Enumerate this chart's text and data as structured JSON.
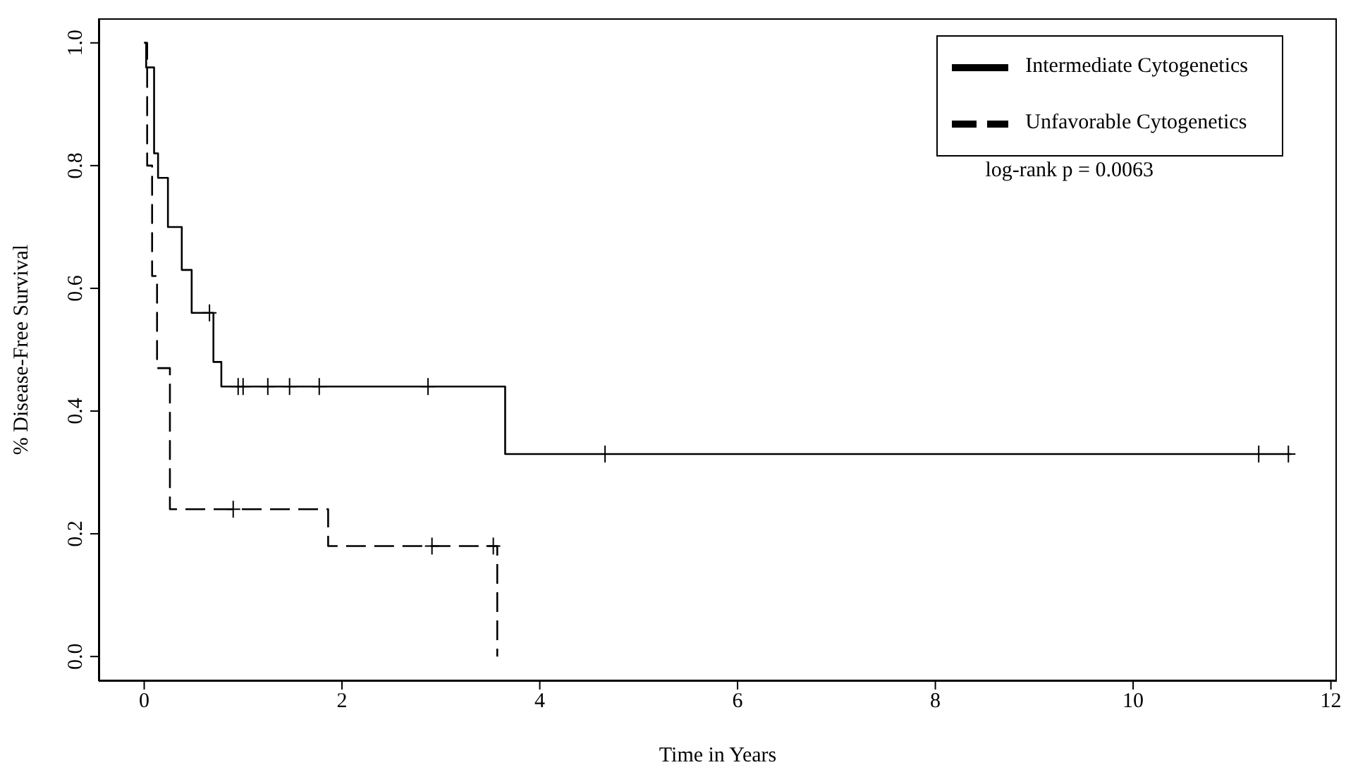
{
  "chart_data": {
    "type": "step",
    "xlabel": "Time in Years",
    "ylabel": "% Disease-Free Survival",
    "annotations": [
      "log-rank p = 0.0063"
    ],
    "xlim": [
      -0.46,
      12.06
    ],
    "xticks": [
      0,
      2,
      4,
      6,
      8,
      10,
      12
    ],
    "ylim": [
      -0.04,
      1.04
    ],
    "yticks": [
      {
        "value": 0,
        "label": "0.0"
      },
      0.2,
      0.4,
      0.6,
      0.8,
      {
        "value": 1,
        "label": "1.0"
      }
    ],
    "legend": "top right",
    "series": [
      {
        "name": "Intermediate Cytogenetics",
        "color": "#000000",
        "line_style": "solid",
        "x": [
          0,
          0.02,
          0.1,
          0.14,
          0.24,
          0.38,
          0.48,
          0.7,
          0.78,
          3.65,
          11.6
        ],
        "values": [
          1.0,
          0.96,
          0.82,
          0.78,
          0.7,
          0.63,
          0.56,
          0.48,
          0.44,
          0.33,
          0.33
        ]
      },
      {
        "name": "Unfavorable Cytogenetics",
        "color": "#000000",
        "line_style": "dashed",
        "x": [
          0,
          0.03,
          0.08,
          0.13,
          0.26,
          1.86,
          3.57
        ],
        "values": [
          1.0,
          0.8,
          0.62,
          0.47,
          0.24,
          0.18,
          0.0
        ]
      },
      {
        "type": "scatter",
        "color": "#000000",
        "marker": "cross",
        "x": [
          0.66,
          0.95,
          1.0,
          1.25,
          1.47,
          1.77,
          2.87,
          4.66,
          11.27,
          11.57,
          0.9,
          2.91,
          3.53
        ],
        "values": [
          0.56,
          0.44,
          0.44,
          0.44,
          0.44,
          0.44,
          0.44,
          0.33,
          0.33,
          0.33,
          0.24,
          0.18,
          0.18
        ]
      }
    ]
  }
}
